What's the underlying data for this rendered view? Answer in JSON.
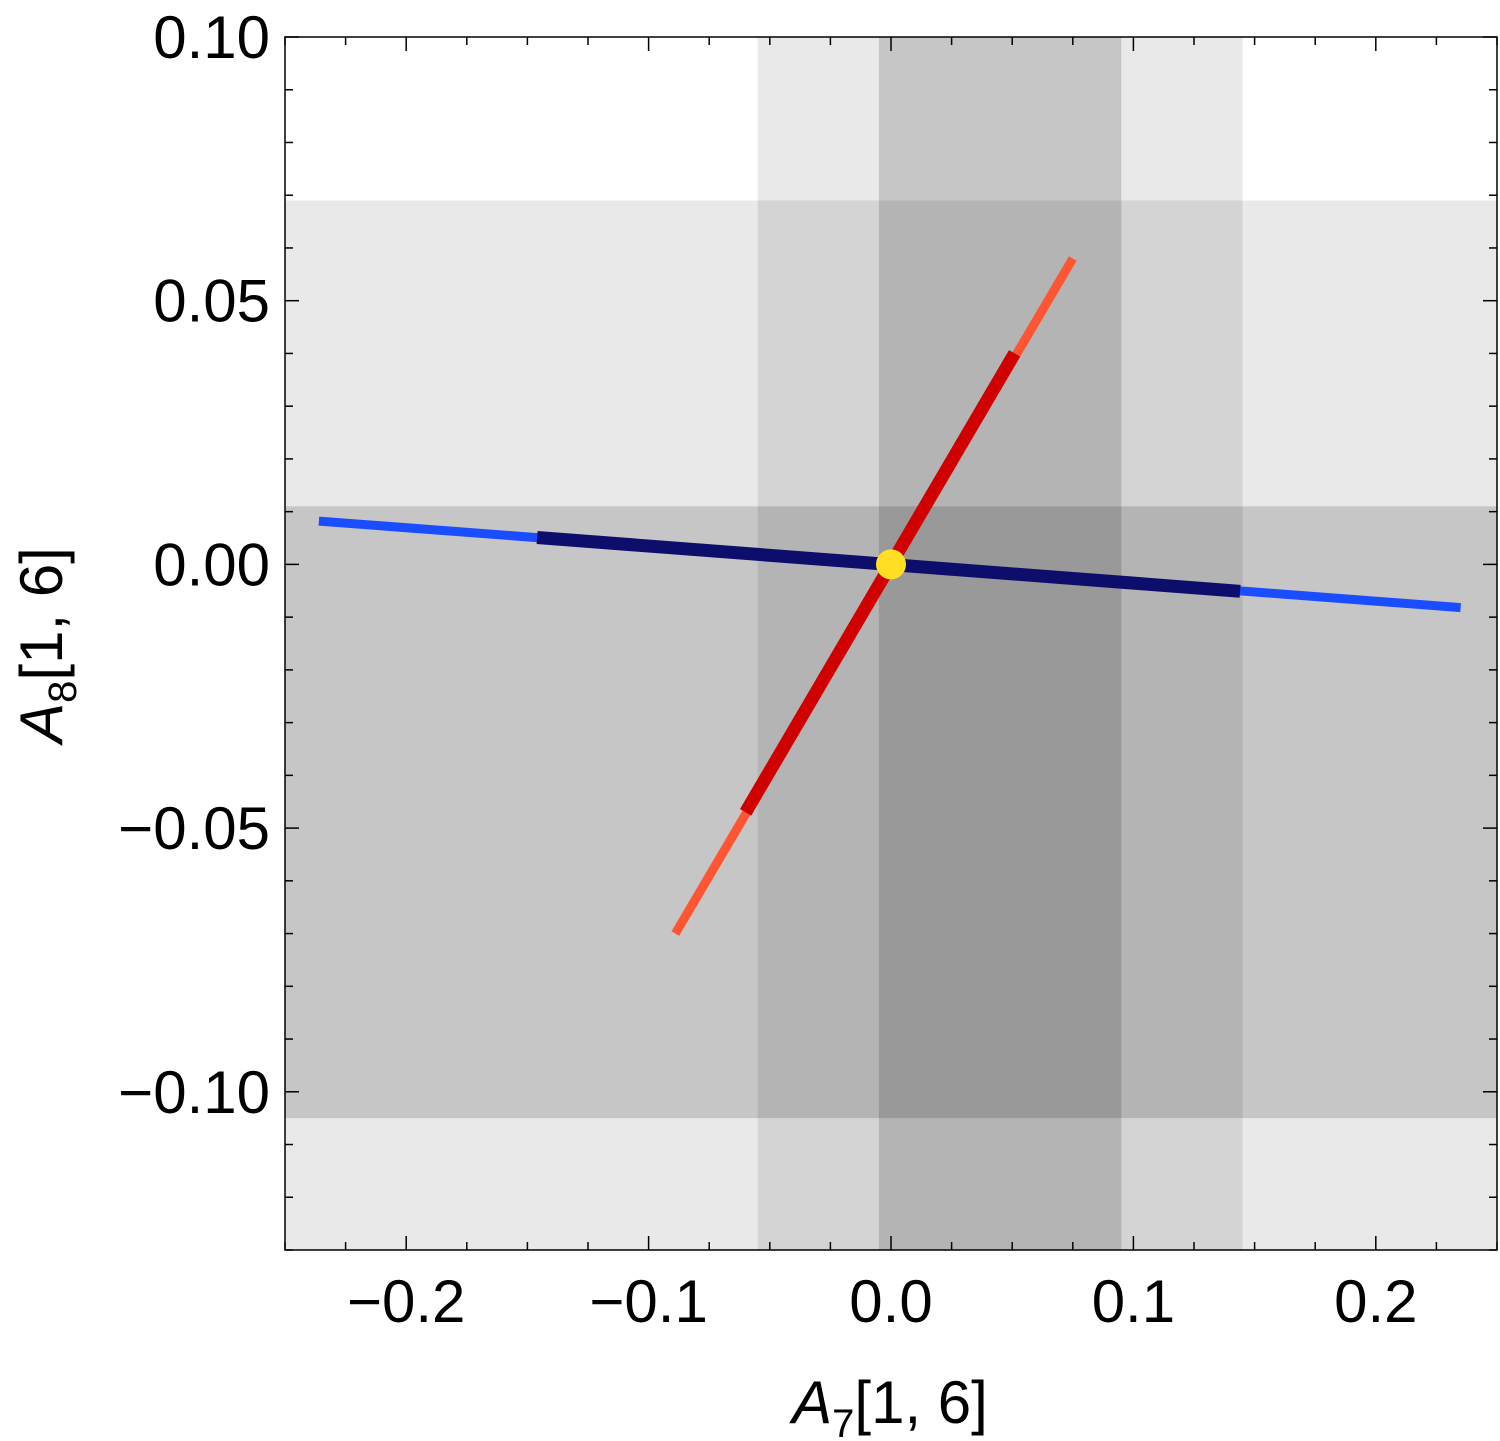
{
  "chart_data": {
    "type": "line",
    "xlabel_main": "A",
    "xlabel_sub": "7",
    "xlabel_rest": "[1, 6]",
    "ylabel_main": "A",
    "ylabel_sub": "8",
    "ylabel_rest": "[1, 6]",
    "xlim": [
      -0.25,
      0.25
    ],
    "ylim": [
      -0.13,
      0.1
    ],
    "xticks": [
      {
        "value": -0.2,
        "label": "−0.2"
      },
      {
        "value": -0.1,
        "label": "−0.1"
      },
      {
        "value": 0.0,
        "label": "0.0"
      },
      {
        "value": 0.1,
        "label": "0.1"
      },
      {
        "value": 0.2,
        "label": "0.2"
      }
    ],
    "yticks": [
      {
        "value": 0.1,
        "label": "0.10"
      },
      {
        "value": 0.05,
        "label": "0.05"
      },
      {
        "value": 0.0,
        "label": "0.00"
      },
      {
        "value": -0.05,
        "label": "−0.05"
      },
      {
        "value": -0.1,
        "label": "−0.10"
      }
    ],
    "bands": [
      {
        "axis": "x",
        "range": [
          -0.055,
          0.145
        ],
        "color": "#000000",
        "opacity": 0.085
      },
      {
        "axis": "x",
        "range": [
          -0.005,
          0.095
        ],
        "color": "#000000",
        "opacity": 0.15
      },
      {
        "axis": "y",
        "range": [
          -0.13,
          0.069
        ],
        "color": "#000000",
        "opacity": 0.085
      },
      {
        "axis": "y",
        "range": [
          -0.105,
          0.011
        ],
        "color": "#000000",
        "opacity": 0.15
      }
    ],
    "series": [
      {
        "points": [
          [
            -0.236,
            0.0082
          ],
          [
            0.235,
            -0.0082
          ]
        ],
        "color": "#1a4dff",
        "width": 9
      },
      {
        "points": [
          [
            -0.146,
            0.0051
          ],
          [
            0.144,
            -0.0051
          ]
        ],
        "color": "#0d0d6b",
        "width": 13
      },
      {
        "points": [
          [
            -0.089,
            -0.07
          ],
          [
            0.075,
            0.058
          ]
        ],
        "color": "#ff5533",
        "width": 9
      },
      {
        "points": [
          [
            -0.06,
            -0.047
          ],
          [
            0.051,
            0.04
          ]
        ],
        "color": "#d10000",
        "width": 13
      }
    ],
    "point": {
      "x": 0.0,
      "y": 0.0,
      "color": "#ffde24"
    }
  }
}
